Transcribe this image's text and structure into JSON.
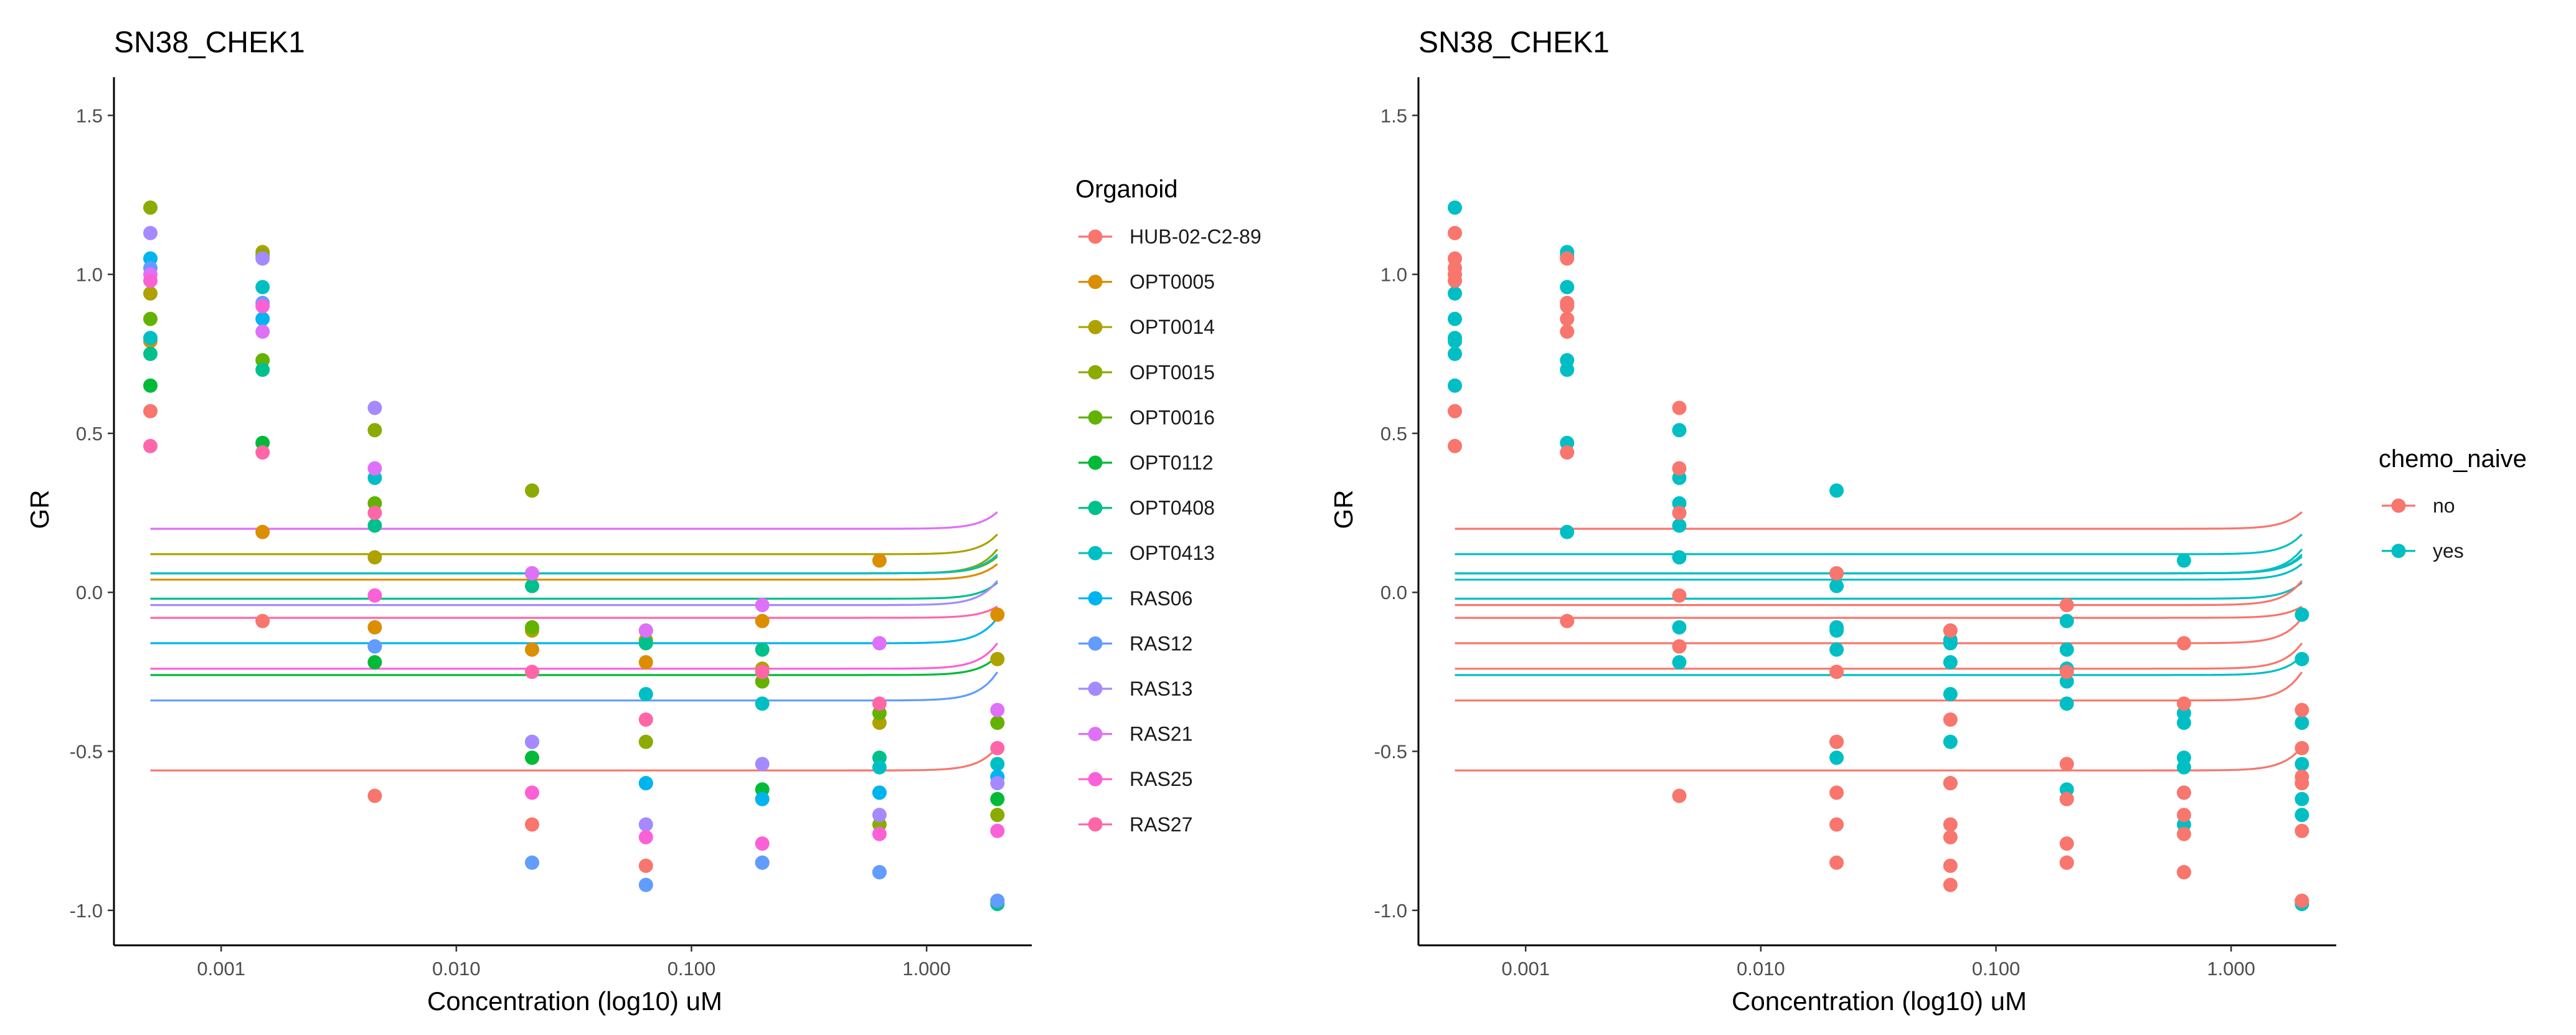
{
  "chart_data": [
    {
      "type": "scatter",
      "title": "SN38_CHEK1",
      "xlabel": "Concentration (log10) uM",
      "ylabel": "GR",
      "x_scale": "log10",
      "xlim": [
        0.00035,
        2.8
      ],
      "ylim": [
        -1.11,
        1.62
      ],
      "x_ticks": [
        0.001,
        0.01,
        0.1,
        1
      ],
      "x_tick_labels": [
        "0.001",
        "0.010",
        "0.100",
        "1.000"
      ],
      "y_ticks": [
        -1.0,
        -0.5,
        0.0,
        0.5,
        1.0,
        1.5
      ],
      "y_tick_labels": [
        "-1.0",
        "-0.5",
        "0.0",
        "0.5",
        "1.0",
        "1.5"
      ],
      "concentrations": [
        0.0005,
        0.0015,
        0.0045,
        0.021,
        0.064,
        0.2,
        0.63,
        2.0
      ],
      "legend_title": "Organoid",
      "legend_position": "right",
      "grid": false,
      "series": [
        {
          "name": "HUB-02-C2-89",
          "color": "#F8766D",
          "values": [
            0.57,
            -0.09,
            -0.64,
            -0.73,
            -0.86,
            -0.85,
            -0.88,
            -0.97
          ]
        },
        {
          "name": "OPT0005",
          "color": "#DB8E00",
          "values": [
            0.79,
            0.19,
            -0.11,
            -0.18,
            -0.22,
            -0.09,
            0.1,
            -0.07
          ]
        },
        {
          "name": "OPT0014",
          "color": "#AEA200",
          "values": [
            0.94,
            1.07,
            0.11,
            -0.12,
            -0.15,
            -0.24,
            -0.41,
            -0.21
          ]
        },
        {
          "name": "OPT0015",
          "color": "#8BAB00",
          "values": [
            1.21,
            1.06,
            0.51,
            0.32,
            -0.47,
            -0.65,
            -0.73,
            -0.7
          ]
        },
        {
          "name": "OPT0016",
          "color": "#64B200",
          "values": [
            0.86,
            0.73,
            0.28,
            -0.11,
            -0.12,
            -0.28,
            -0.38,
            -0.41
          ]
        },
        {
          "name": "OPT0112",
          "color": "#00BA38",
          "values": [
            0.65,
            0.47,
            -0.22,
            -0.52,
            -0.6,
            -0.62,
            -0.63,
            -0.65
          ]
        },
        {
          "name": "OPT0408",
          "color": "#00C08B",
          "values": [
            0.75,
            0.7,
            0.21,
            0.02,
            -0.16,
            -0.18,
            -0.52,
            -0.98
          ]
        },
        {
          "name": "OPT0413",
          "color": "#00BFC4",
          "values": [
            0.8,
            0.96,
            0.36,
            0.06,
            -0.32,
            -0.35,
            -0.55,
            -0.54
          ]
        },
        {
          "name": "RAS06",
          "color": "#00B4F0",
          "values": [
            1.05,
            0.86,
            -0.17,
            -0.47,
            -0.6,
            -0.65,
            -0.63,
            -0.58
          ]
        },
        {
          "name": "RAS12",
          "color": "#619CFF",
          "values": [
            1.02,
            0.91,
            -0.17,
            -0.85,
            -0.92,
            -0.85,
            -0.88,
            -0.97
          ]
        },
        {
          "name": "RAS13",
          "color": "#A58AFF",
          "values": [
            1.13,
            1.05,
            0.58,
            -0.47,
            -0.73,
            -0.54,
            -0.7,
            -0.6
          ]
        },
        {
          "name": "RAS21",
          "color": "#DF70F8",
          "values": [
            1.0,
            0.82,
            0.39,
            0.06,
            -0.12,
            -0.04,
            -0.16,
            -0.37
          ]
        },
        {
          "name": "RAS25",
          "color": "#FB61D7",
          "values": [
            0.98,
            0.9,
            -0.01,
            -0.63,
            -0.77,
            -0.79,
            -0.76,
            -0.75
          ]
        },
        {
          "name": "RAS27",
          "color": "#FF66A8",
          "values": [
            0.46,
            0.44,
            0.25,
            -0.25,
            -0.4,
            -0.25,
            -0.35,
            -0.49
          ]
        }
      ]
    },
    {
      "type": "scatter",
      "title": "SN38_CHEK1",
      "xlabel": "Concentration (log10) uM",
      "ylabel": "GR",
      "x_scale": "log10",
      "xlim": [
        0.00035,
        2.8
      ],
      "ylim": [
        -1.11,
        1.62
      ],
      "x_ticks": [
        0.001,
        0.01,
        0.1,
        1
      ],
      "x_tick_labels": [
        "0.001",
        "0.010",
        "0.100",
        "1.000"
      ],
      "y_ticks": [
        -1.0,
        -0.5,
        0.0,
        0.5,
        1.0,
        1.5
      ],
      "y_tick_labels": [
        "-1.0",
        "-0.5",
        "0.0",
        "0.5",
        "1.0",
        "1.5"
      ],
      "legend_title": "chemo_naive",
      "legend_position": "right",
      "grid": false,
      "series": [
        {
          "name": "no",
          "color": "#F8766D",
          "members": [
            "HUB-02-C2-89",
            "RAS06",
            "RAS12",
            "RAS13",
            "RAS21",
            "RAS25",
            "RAS27"
          ]
        },
        {
          "name": "yes",
          "color": "#00BFC4",
          "members": [
            "OPT0005",
            "OPT0014",
            "OPT0015",
            "OPT0016",
            "OPT0112",
            "OPT0408",
            "OPT0413"
          ]
        }
      ]
    }
  ]
}
